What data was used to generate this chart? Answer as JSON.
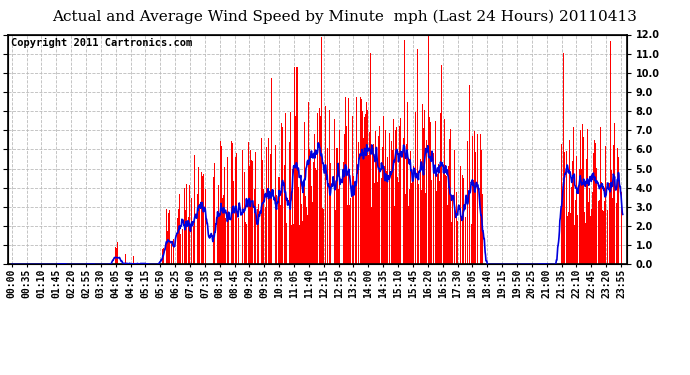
{
  "title": "Actual and Average Wind Speed by Minute  mph (Last 24 Hours) 20110413",
  "copyright": "Copyright 2011 Cartronics.com",
  "ylim": [
    0.0,
    12.0
  ],
  "yticks": [
    0.0,
    1.0,
    2.0,
    3.0,
    4.0,
    5.0,
    6.0,
    7.0,
    8.0,
    9.0,
    10.0,
    11.0,
    12.0
  ],
  "yticklabels": [
    "0.0",
    "1.0",
    "2.0",
    "3.0",
    "4.0",
    "5.0",
    "6.0",
    "7.0",
    "8.0",
    "9.0",
    "10.0",
    "11.0",
    "12.0"
  ],
  "bar_color": "#ff0000",
  "line_color": "#0000dd",
  "bg_color": "#ffffff",
  "grid_color": "#bbbbbb",
  "title_fontsize": 11,
  "copyright_fontsize": 7.5,
  "tick_fontsize": 7,
  "n_minutes": 1440,
  "tick_step": 35,
  "avg_window": 20
}
